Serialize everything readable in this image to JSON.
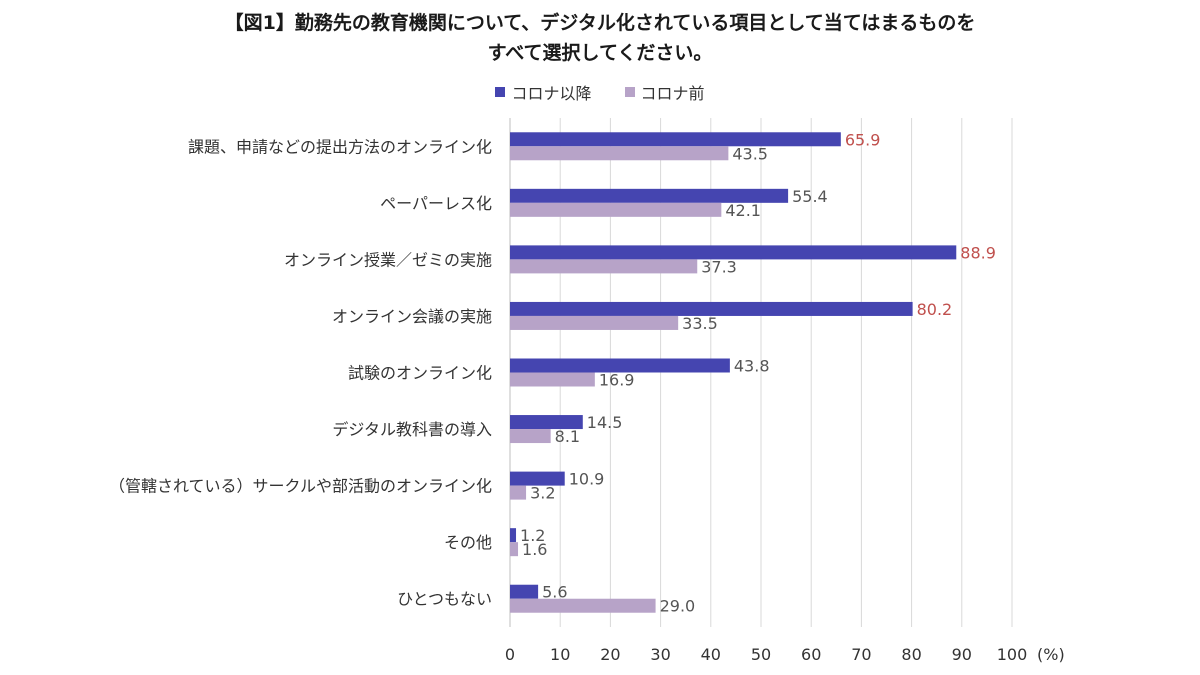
{
  "title_line1": "【図1】勤務先の教育機関について、デジタル化されている項目として当てはまるものを",
  "title_line2": "すべて選択してください。",
  "legend": [
    {
      "name": "コロナ以降",
      "color": "#4545b0"
    },
    {
      "name": "コロナ前",
      "color": "#b7a3c8"
    }
  ],
  "chart_data": {
    "type": "bar",
    "orientation": "horizontal",
    "categories": [
      "課題、申請などの提出方法のオンライン化",
      "ペーパーレス化",
      "オンライン授業／ゼミの実施",
      "オンライン会議の実施",
      "試験のオンライン化",
      "デジタル教科書の導入",
      "（管轄されている）サークルや部活動のオンライン化",
      "その他",
      "ひとつもない"
    ],
    "series": [
      {
        "name": "コロナ以降",
        "color": "#4545b0",
        "values": [
          65.9,
          55.4,
          88.9,
          80.2,
          43.8,
          14.5,
          10.9,
          1.2,
          5.6
        ],
        "labels": [
          "65.9",
          "55.4",
          "88.9",
          "80.2",
          "43.8",
          "14.5",
          "10.9",
          "1.2",
          "5.6"
        ]
      },
      {
        "name": "コロナ前",
        "color": "#b7a3c8",
        "values": [
          43.5,
          42.1,
          37.3,
          33.5,
          16.9,
          8.1,
          3.2,
          1.6,
          29.0
        ],
        "labels": [
          "43.5",
          "42.1",
          "37.3",
          "33.5",
          "16.9",
          "8.1",
          "3.2",
          "1.6",
          "29.0"
        ]
      }
    ],
    "highlight_label_color": "#c0504d",
    "highlighted_values": [
      65.9,
      88.9,
      80.2
    ],
    "xlim": [
      0,
      100
    ],
    "xticks": [
      "0",
      "10",
      "20",
      "30",
      "40",
      "50",
      "60",
      "70",
      "80",
      "90",
      "100"
    ],
    "xunit": "(%)",
    "grid": true
  }
}
